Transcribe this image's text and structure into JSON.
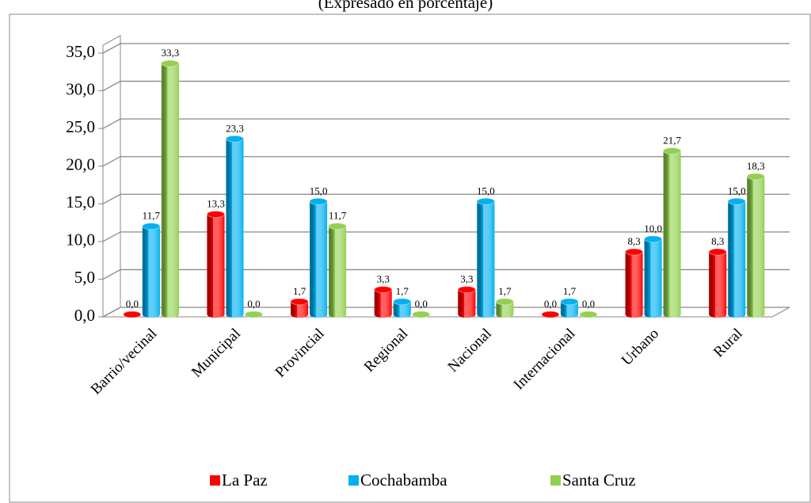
{
  "chart_data": {
    "type": "bar",
    "title": "(Expresado en porcentaje)",
    "categories": [
      "Barrio/vecinal",
      "Municipal",
      "Provincial",
      "Regional",
      "Nacional",
      "Internacional",
      "Urbano",
      "Rural"
    ],
    "series": [
      {
        "name": "La Paz",
        "color": "#ff0000",
        "values": [
          0.0,
          13.3,
          1.7,
          3.3,
          3.3,
          0.0,
          8.3,
          8.3
        ],
        "value_labels": [
          "0,0",
          "13,3",
          "1,7",
          "3,3",
          "3,3",
          "0,0",
          "8,3",
          "8,3"
        ]
      },
      {
        "name": "Cochabamba",
        "color": "#00b0f0",
        "values": [
          11.7,
          23.3,
          15.0,
          1.7,
          15.0,
          1.7,
          10.0,
          15.0
        ],
        "value_labels": [
          "11,7",
          "23,3",
          "15,0",
          "1,7",
          "15,0",
          "1,7",
          "10,0",
          "15,0"
        ]
      },
      {
        "name": "Santa Cruz",
        "color": "#92d050",
        "values": [
          33.3,
          0.0,
          11.7,
          0.0,
          1.7,
          0.0,
          21.7,
          18.3
        ],
        "value_labels": [
          "33,3",
          "0,0",
          "11,7",
          "0,0",
          "1,7",
          "0,0",
          "21,7",
          "18,3"
        ]
      }
    ],
    "ylim": [
      0,
      35
    ],
    "yticks": [
      {
        "value": 0,
        "label": "0,0"
      },
      {
        "value": 5,
        "label": "5,0"
      },
      {
        "value": 10,
        "label": "10,0"
      },
      {
        "value": 15,
        "label": "15,0"
      },
      {
        "value": 20,
        "label": "20,0"
      },
      {
        "value": 25,
        "label": "25,0"
      },
      {
        "value": 30,
        "label": "30,0"
      },
      {
        "value": 35,
        "label": "35,0"
      }
    ],
    "grid": true,
    "legend": "bottom"
  }
}
